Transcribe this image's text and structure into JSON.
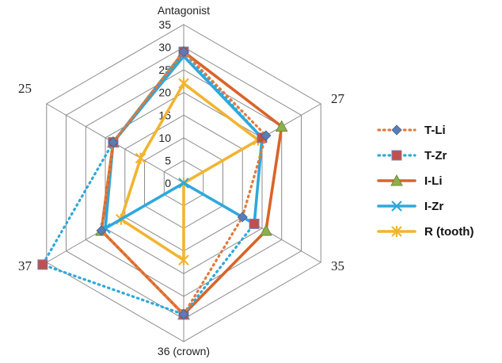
{
  "chart_data": {
    "type": "radar",
    "axes": [
      "Antagonist",
      "27",
      "35",
      "36 (crown)",
      "37",
      "25"
    ],
    "rlim": [
      0,
      35
    ],
    "ticks": [
      0,
      5,
      10,
      15,
      20,
      25,
      30,
      35
    ],
    "grid": true,
    "legend_position": "right",
    "series": [
      {
        "name": "T-Li",
        "color": "#E07A3A",
        "line_style": "dotted",
        "marker": "diamond",
        "marker_color": "#5B7DB5",
        "values": [
          29,
          21,
          15,
          29,
          21,
          18
        ]
      },
      {
        "name": "T-Zr",
        "color": "#2FA8DC",
        "line_style": "dotted",
        "marker": "square",
        "marker_color": "#C0504D",
        "values": [
          29,
          20,
          18,
          29,
          36,
          18
        ]
      },
      {
        "name": "I-Li",
        "color": "#D9642A",
        "line_style": "solid",
        "marker": "triangle",
        "marker_color": "#8DB04A",
        "values": [
          29,
          25,
          21,
          29,
          21,
          18
        ]
      },
      {
        "name": "I-Zr",
        "color": "#2FA8DC",
        "line_style": "solid",
        "marker": "x",
        "marker_color": "#2FA8DC",
        "values": [
          28,
          20,
          18,
          0,
          20,
          18
        ]
      },
      {
        "name": "R (tooth)",
        "color": "#F2B430",
        "line_style": "solid",
        "marker": "star",
        "marker_color": "#F2B430",
        "values": [
          22,
          19,
          0,
          17,
          16,
          11
        ]
      }
    ]
  }
}
